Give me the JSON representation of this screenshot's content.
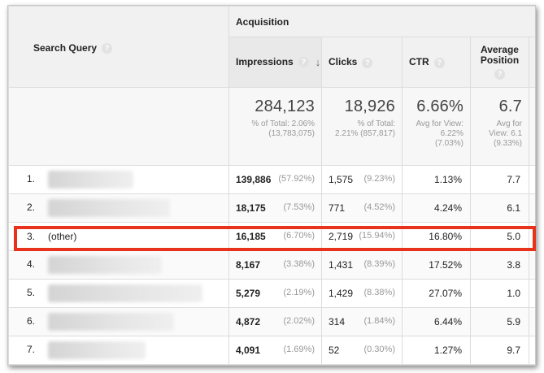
{
  "header": {
    "search_query": "Search Query",
    "acquisition": "Acquisition",
    "impressions": "Impressions",
    "clicks": "Clicks",
    "ctr": "CTR",
    "avg_position_line1": "Average",
    "avg_position_line2": "Position",
    "help": "?",
    "sort_arrow": "↓"
  },
  "totals": {
    "impressions": {
      "value": "284,123",
      "line1": "% of Total: 2.06%",
      "line2": "(13,783,075)"
    },
    "clicks": {
      "value": "18,926",
      "line1": "% of Total:",
      "line2": "2.21% (857,817)"
    },
    "ctr": {
      "value": "6.66%",
      "line1": "Avg for View:",
      "line2": "6.22%",
      "line3": "(7.03%)"
    },
    "position": {
      "value": "6.7",
      "line1": "Avg for",
      "line2": "View: 6.1",
      "line3": "(9.33%)"
    }
  },
  "rows": [
    {
      "index": "1.",
      "query": "",
      "blur_width": 105,
      "impressions": "139,886",
      "impressions_pct": "(57.92%)",
      "clicks": "1,575",
      "clicks_pct": "(9.23%)",
      "ctr": "1.13%",
      "position": "7.7"
    },
    {
      "index": "2.",
      "query": "",
      "blur_width": 150,
      "impressions": "18,175",
      "impressions_pct": "(7.53%)",
      "clicks": "771",
      "clicks_pct": "(4.52%)",
      "ctr": "4.24%",
      "position": "6.1"
    },
    {
      "index": "3.",
      "query": "(other)",
      "blur_width": 0,
      "impressions": "16,185",
      "impressions_pct": "(6.70%)",
      "clicks": "2,719",
      "clicks_pct": "(15.94%)",
      "ctr": "16.80%",
      "position": "5.0"
    },
    {
      "index": "4.",
      "query": "",
      "blur_width": 140,
      "impressions": "8,167",
      "impressions_pct": "(3.38%)",
      "clicks": "1,431",
      "clicks_pct": "(8.39%)",
      "ctr": "17.52%",
      "position": "3.8"
    },
    {
      "index": "5.",
      "query": "",
      "blur_width": 190,
      "impressions": "5,279",
      "impressions_pct": "(2.19%)",
      "clicks": "1,429",
      "clicks_pct": "(8.38%)",
      "ctr": "27.07%",
      "position": "1.0"
    },
    {
      "index": "6.",
      "query": "",
      "blur_width": 155,
      "impressions": "4,872",
      "impressions_pct": "(2.02%)",
      "clicks": "314",
      "clicks_pct": "(1.84%)",
      "ctr": "6.44%",
      "position": "5.9"
    },
    {
      "index": "7.",
      "query": "",
      "blur_width": 120,
      "impressions": "4,091",
      "impressions_pct": "(1.69%)",
      "clicks": "52",
      "clicks_pct": "(0.30%)",
      "ctr": "1.27%",
      "position": "9.7"
    }
  ],
  "colors": {
    "highlight": "#e8321c",
    "header_bg": "#f1f1f1"
  }
}
